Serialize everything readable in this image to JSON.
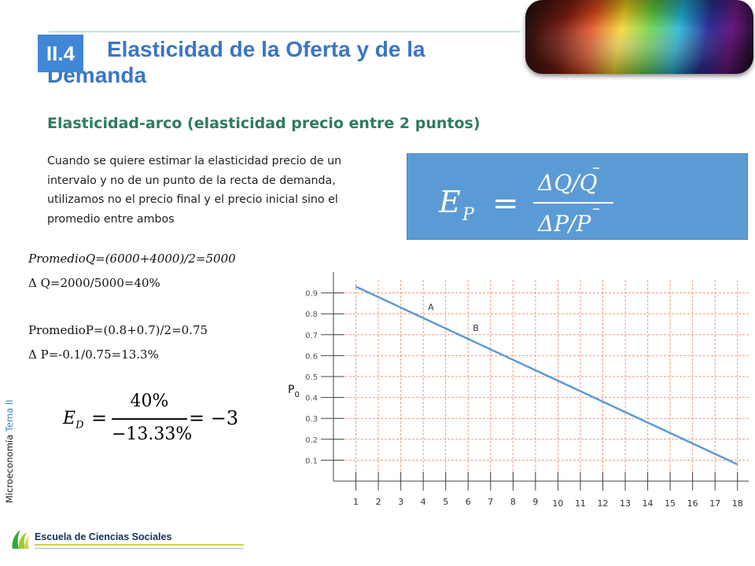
{
  "header": {
    "badge": "II.4",
    "title": "Elasticidad de la Oferta y de la Demanda"
  },
  "subtitle": "Elasticidad-arco (elasticidad precio entre 2 puntos)",
  "intro_text": "Cuando se quiere estimar la elasticidad precio de un intervalo y no de un punto de la recta de demanda, utilizamos no el precio final y el precio inicial sino el promedio entre ambos",
  "formula": {
    "lhs": "E",
    "lhs_sub": "P",
    "equals": "=",
    "numerator": "ΔQ/Q",
    "denominator": "ΔP/P",
    "color": "#5b9bd5"
  },
  "calculations": {
    "line1": "PromedioQ=(6000+4000)/2=5000",
    "line2": "Δ Q=2000/5000=40%",
    "line3": "PromedioP=(0.8+0.7)/2=0.75",
    "line4": "Δ P=-0.1/0.75=13.3%"
  },
  "elasticity_result": {
    "lhs": "E",
    "lhs_sub": "D",
    "equals": "=",
    "numerator": "40%",
    "denominator": "−13.33%",
    "rhs": "= −3"
  },
  "sidebar": {
    "course": "Microeconomía",
    "topic": "Tema II"
  },
  "footer": {
    "school": "Escuela de Ciencias Sociales"
  },
  "chart_data": {
    "type": "line",
    "x_ticks": [
      "1",
      "2",
      "3",
      "4",
      "5",
      "6",
      "7",
      "8",
      "9",
      "10",
      "11",
      "12",
      "13",
      "14",
      "15",
      "16",
      "17",
      "18"
    ],
    "y_ticks": [
      "0.9",
      "0.8",
      "0.7",
      "0.6",
      "0.5",
      "0.4",
      "0.3",
      "0.2",
      "0.1"
    ],
    "y_label": "P",
    "y_label_sub": "0",
    "series": [
      {
        "values": [
          [
            1,
            0.93
          ],
          [
            18,
            0.08
          ]
        ],
        "color": "#5b9bd5"
      }
    ],
    "points": [
      {
        "label": "A",
        "x": 4,
        "y": 0.78
      },
      {
        "label": "B",
        "x": 6,
        "y": 0.68
      }
    ],
    "xlim": [
      0,
      18.5
    ],
    "ylim": [
      0,
      1.0
    ],
    "grid": true,
    "grid_color": "#f07a52"
  }
}
